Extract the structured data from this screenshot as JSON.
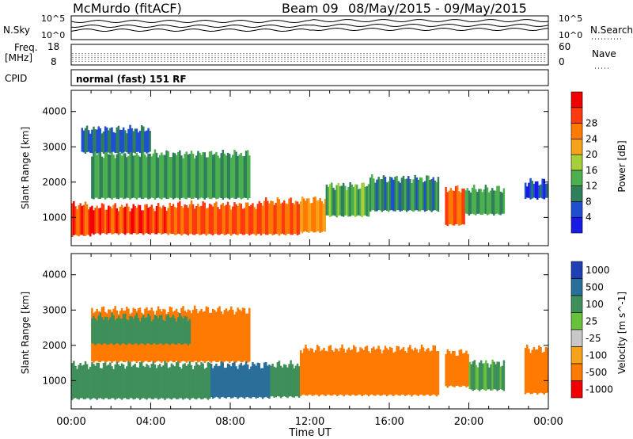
{
  "header": {
    "station": "McMurdo (fitACF)",
    "beam": "Beam 09",
    "daterange": "08/May/2015 - 09/May/2015"
  },
  "panels": {
    "nsky": {
      "label": "N.Sky",
      "yticks": [
        "10^5",
        "10^0"
      ],
      "right_label": "N.Search",
      "right_ticks": [
        "10^5",
        "10^0"
      ]
    },
    "freq": {
      "label_line1": "Freq.",
      "label_line2": "[MHz]",
      "yticks": [
        "18",
        "8"
      ],
      "right_label": "Nave",
      "right_ticks": [
        "60",
        "0"
      ]
    },
    "cpid": {
      "label": "CPID",
      "mode": "normal (fast) 151 RF"
    }
  },
  "chart_data": [
    {
      "type": "heatmap",
      "title": "Power",
      "xlabel": "Time UT",
      "ylabel": "Slant Range [km]",
      "x_ticks": [
        "00:00",
        "04:00",
        "08:00",
        "12:00",
        "16:00",
        "20:00",
        "00:00"
      ],
      "xlim_hours": [
        0,
        24
      ],
      "ylim": [
        200,
        4600
      ],
      "y_ticks": [
        1000,
        2000,
        3000,
        4000
      ],
      "colorbar": {
        "label": "Power [dB]",
        "ticks": [
          "4",
          "8",
          "12",
          "16",
          "20",
          "24",
          "28"
        ],
        "levels": [
          0,
          4,
          8,
          12,
          16,
          20,
          24,
          28,
          32
        ],
        "colors": [
          "#1a1ae6",
          "#1f4fd1",
          "#2f7f5a",
          "#4caf50",
          "#a6cf3a",
          "#f7a21b",
          "#ff7a00",
          "#ff3a10",
          "#f00000"
        ]
      },
      "regions": [
        {
          "t0": 0.0,
          "t1": 1.0,
          "r_low": 450,
          "r_high": 1350,
          "value": 30
        },
        {
          "t0": 1.0,
          "t1": 5.0,
          "r_low": 500,
          "r_high": 1300,
          "value": 30
        },
        {
          "t0": 5.0,
          "t1": 9.5,
          "r_low": 480,
          "r_high": 1350,
          "value": 29
        },
        {
          "t0": 9.5,
          "t1": 11.5,
          "r_low": 480,
          "r_high": 1450,
          "value": 28
        },
        {
          "t0": 11.5,
          "t1": 12.8,
          "r_low": 550,
          "r_high": 1500,
          "value": 24
        },
        {
          "t0": 12.8,
          "t1": 15.0,
          "r_low": 1000,
          "r_high": 1900,
          "value": 14
        },
        {
          "t0": 15.0,
          "t1": 18.5,
          "r_low": 1150,
          "r_high": 2100,
          "value": 10
        },
        {
          "t0": 18.8,
          "t1": 19.8,
          "r_low": 750,
          "r_high": 1800,
          "value": 28
        },
        {
          "t0": 19.8,
          "t1": 21.8,
          "r_low": 1050,
          "r_high": 1800,
          "value": 13
        },
        {
          "t0": 22.8,
          "t1": 24.0,
          "r_low": 1500,
          "r_high": 2000,
          "value": 6
        },
        {
          "t0": 1.0,
          "t1": 9.0,
          "r_low": 1500,
          "r_high": 2800,
          "value": 13
        },
        {
          "t0": 0.5,
          "t1": 4.0,
          "r_low": 2800,
          "r_high": 3500,
          "value": 7
        }
      ]
    },
    {
      "type": "heatmap",
      "title": "Velocity",
      "xlabel": "Time UT",
      "ylabel": "Slant Range [km]",
      "x_ticks": [
        "00:00",
        "04:00",
        "08:00",
        "12:00",
        "16:00",
        "20:00",
        "00:00"
      ],
      "xlim_hours": [
        0,
        24
      ],
      "ylim": [
        200,
        4600
      ],
      "y_ticks": [
        1000,
        2000,
        3000,
        4000
      ],
      "colorbar": {
        "label": "Velocity [m s^-1]",
        "ticks": [
          "1000",
          "500",
          "100",
          "25",
          "-25",
          "-100",
          "-500",
          "-1000"
        ],
        "levels": [
          1000,
          500,
          100,
          25,
          -25,
          -100,
          -500,
          -1000
        ],
        "colors": [
          "#1f3fb4",
          "#2a6f9a",
          "#3f8f5a",
          "#68c13a",
          "#c8c8c8",
          "#f7a21b",
          "#ff7a00",
          "#f00000"
        ]
      },
      "regions": [
        {
          "t0": 0.0,
          "t1": 7.0,
          "r_low": 450,
          "r_high": 1450,
          "value": 150
        },
        {
          "t0": 7.0,
          "t1": 10.0,
          "r_low": 480,
          "r_high": 1450,
          "value": 600
        },
        {
          "t0": 10.0,
          "t1": 11.5,
          "r_low": 500,
          "r_high": 1450,
          "value": 200
        },
        {
          "t0": 11.5,
          "t1": 18.5,
          "r_low": 550,
          "r_high": 1900,
          "value": -200
        },
        {
          "t0": 18.8,
          "t1": 20.0,
          "r_low": 800,
          "r_high": 1800,
          "value": -250
        },
        {
          "t0": 20.0,
          "t1": 21.8,
          "r_low": 700,
          "r_high": 1500,
          "value": 120
        },
        {
          "t0": 22.8,
          "t1": 24.0,
          "r_low": 600,
          "r_high": 1900,
          "value": -200
        },
        {
          "t0": 1.0,
          "t1": 9.0,
          "r_low": 1500,
          "r_high": 3000,
          "value": -150
        },
        {
          "t0": 1.0,
          "t1": 6.0,
          "r_low": 2000,
          "r_high": 2800,
          "value": 150
        }
      ]
    }
  ]
}
